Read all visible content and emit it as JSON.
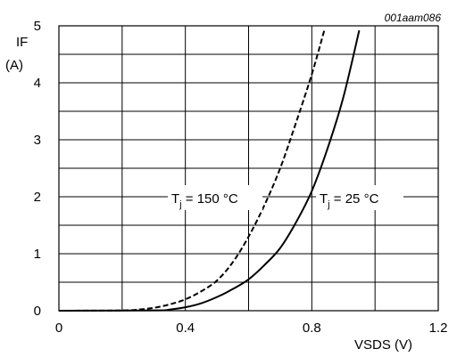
{
  "chart_data": {
    "type": "line",
    "figure_id": "001aam086",
    "xlabel": "VSDS (V)",
    "ylabel_line1": "IF",
    "ylabel_line2": "(A)",
    "xlim": [
      0,
      1.2
    ],
    "ylim": [
      0,
      5
    ],
    "x_major_ticks": [
      0,
      0.4,
      0.8,
      1.2
    ],
    "x_tick_labels": [
      "0",
      "0.4",
      "0.8",
      "1.2"
    ],
    "x_minor_step": 0.2,
    "y_major_ticks": [
      0,
      1,
      2,
      3,
      4,
      5
    ],
    "y_tick_labels": [
      "0",
      "1",
      "2",
      "3",
      "4",
      "5"
    ],
    "y_minor_step": 0.5,
    "grid": true,
    "series": [
      {
        "label_main": "T",
        "label_sub": "j",
        "label_rest": " = 150 °C",
        "style": "dashed",
        "color": "#000000",
        "points": [
          [
            0,
            0
          ],
          [
            0.2,
            0.005
          ],
          [
            0.25,
            0.02
          ],
          [
            0.3,
            0.05
          ],
          [
            0.35,
            0.11
          ],
          [
            0.4,
            0.2
          ],
          [
            0.45,
            0.34
          ],
          [
            0.5,
            0.53
          ],
          [
            0.55,
            0.85
          ],
          [
            0.6,
            1.3
          ],
          [
            0.65,
            1.85
          ],
          [
            0.7,
            2.5
          ],
          [
            0.75,
            3.3
          ],
          [
            0.8,
            4.15
          ],
          [
            0.84,
            4.93
          ]
        ]
      },
      {
        "label_main": "T",
        "label_sub": "j",
        "label_rest": " = 25 °C",
        "style": "solid",
        "color": "#000000",
        "points": [
          [
            0,
            0
          ],
          [
            0.3,
            0.005
          ],
          [
            0.35,
            0.02
          ],
          [
            0.4,
            0.06
          ],
          [
            0.45,
            0.13
          ],
          [
            0.5,
            0.24
          ],
          [
            0.55,
            0.38
          ],
          [
            0.6,
            0.55
          ],
          [
            0.65,
            0.8
          ],
          [
            0.7,
            1.1
          ],
          [
            0.75,
            1.55
          ],
          [
            0.8,
            2.1
          ],
          [
            0.85,
            2.85
          ],
          [
            0.9,
            3.75
          ],
          [
            0.95,
            4.92
          ]
        ]
      }
    ]
  }
}
